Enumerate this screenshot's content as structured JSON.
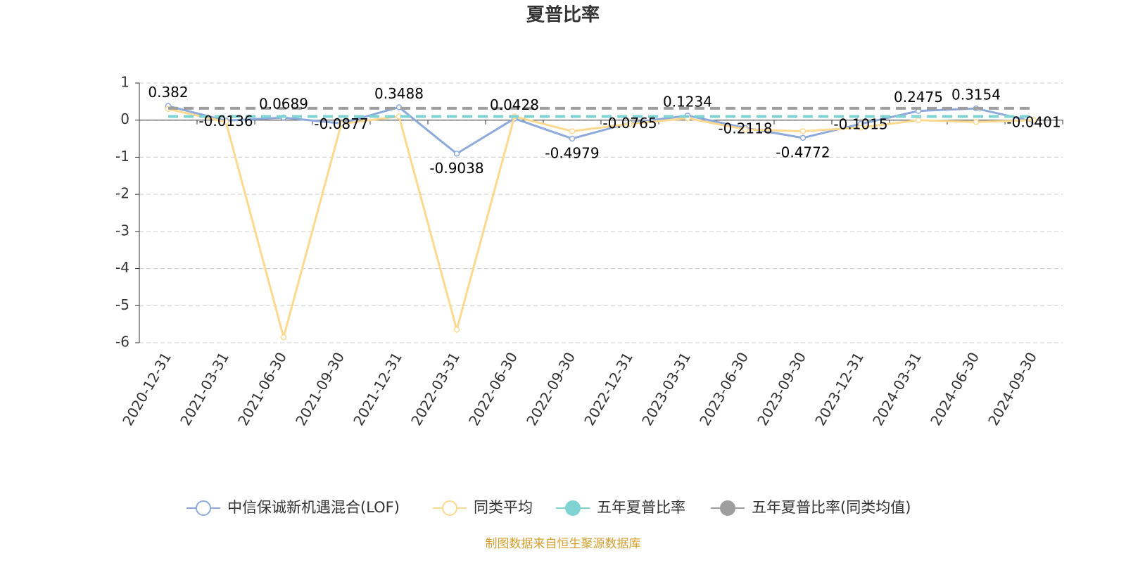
{
  "chart_data": {
    "type": "line",
    "title": "夏普比率",
    "categories": [
      "2020-12-31",
      "2021-03-31",
      "2021-06-30",
      "2021-09-30",
      "2021-12-31",
      "2022-03-31",
      "2022-06-30",
      "2022-09-30",
      "2022-12-31",
      "2023-03-31",
      "2023-06-30",
      "2023-09-30",
      "2023-12-31",
      "2024-03-31",
      "2024-06-30",
      "2024-09-30"
    ],
    "series": [
      {
        "name": "中信保诚新机遇混合(LOF)",
        "color": "#8eaadb",
        "values": [
          0.382,
          -0.0136,
          0.0689,
          -0.0877,
          0.3488,
          -0.9038,
          0.0428,
          -0.4979,
          -0.0765,
          0.1234,
          -0.2118,
          -0.4772,
          -0.1015,
          0.2475,
          0.3154,
          -0.0401
        ]
      },
      {
        "name": "同类平均",
        "color": "#fcd98f",
        "values": [
          0.3,
          -0.05,
          -5.85,
          -0.1,
          0.1,
          -5.65,
          0.1,
          -0.3,
          -0.1,
          0.05,
          -0.25,
          -0.3,
          -0.2,
          0.0,
          -0.05,
          0.0
        ]
      },
      {
        "name": "五年夏普比率",
        "color": "#7fd3d3",
        "value": 0.1
      },
      {
        "name": "五年夏普比率(同类均值)",
        "color": "#9e9e9e",
        "value": 0.32
      }
    ],
    "ylim": [
      -6,
      1
    ],
    "yticks": [
      1,
      0,
      -1,
      -2,
      -3,
      -4,
      -5,
      -6
    ],
    "grid": true,
    "source": "制图数据来自恒生聚源数据库"
  }
}
